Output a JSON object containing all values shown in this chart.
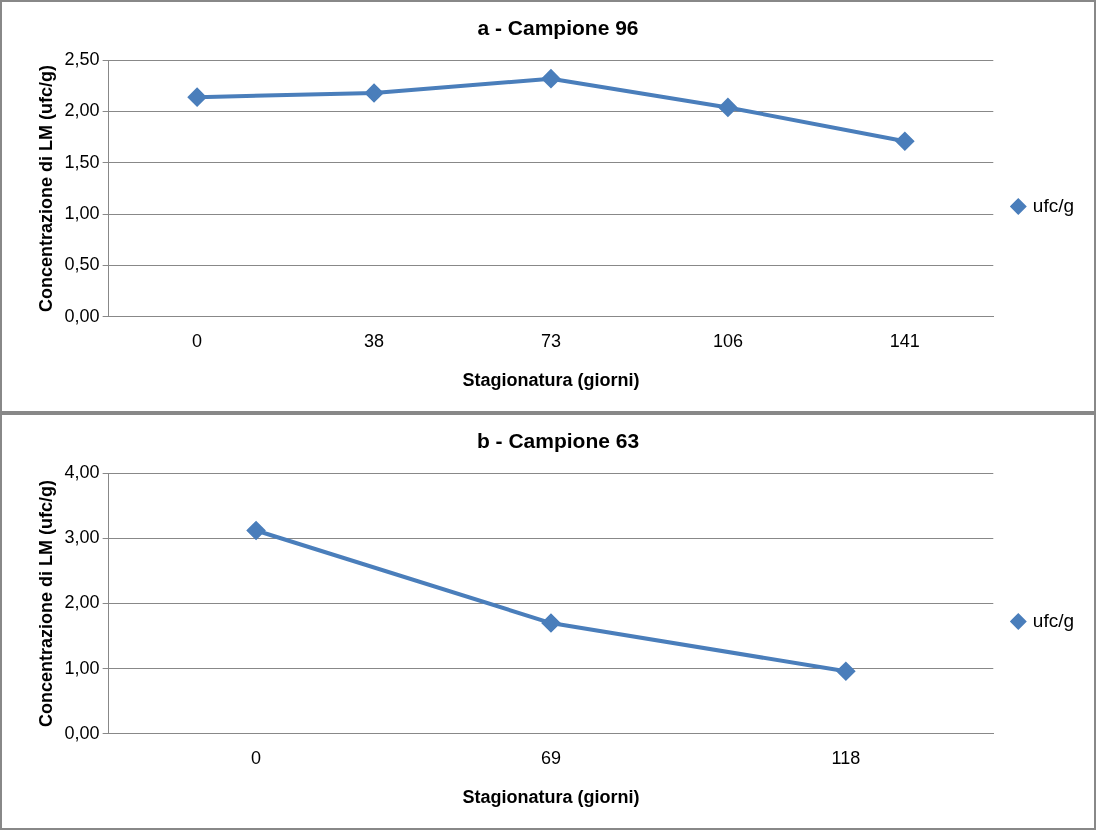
{
  "chart_data": [
    {
      "type": "line",
      "title": "a - Campione 96",
      "xlabel": "Stagionatura (giorni)",
      "ylabel": "Concentrazione di LM (ufc/g)",
      "categories": [
        "0",
        "38",
        "73",
        "106",
        "141"
      ],
      "series": [
        {
          "name": "ufc/g",
          "color": "#4a7ebb",
          "values": [
            2.14,
            2.18,
            2.32,
            2.04,
            1.71
          ]
        }
      ],
      "ylim": [
        0,
        2.5
      ],
      "yticks": [
        {
          "value": 0,
          "label": "0,00"
        },
        {
          "value": 0.5,
          "label": "0,50"
        },
        {
          "value": 1,
          "label": "1,00"
        },
        {
          "value": 1.5,
          "label": "1,50"
        },
        {
          "value": 2,
          "label": "2,00"
        },
        {
          "value": 2.5,
          "label": "2,50"
        }
      ],
      "grid": "y",
      "legend": "right",
      "marker": "diamond",
      "line_style": "solid"
    },
    {
      "type": "line",
      "title": "b - Campione 63",
      "xlabel": "Stagionatura (giorni)",
      "ylabel": "Concentrazione di LM (ufc/g)",
      "categories": [
        "0",
        "69",
        "118"
      ],
      "series": [
        {
          "name": "ufc/g",
          "color": "#4a7ebb",
          "values": [
            3.12,
            1.7,
            0.96
          ]
        }
      ],
      "ylim": [
        0,
        4
      ],
      "yticks": [
        {
          "value": 0,
          "label": "0,00"
        },
        {
          "value": 1,
          "label": "1,00"
        },
        {
          "value": 2,
          "label": "2,00"
        },
        {
          "value": 3,
          "label": "3,00"
        },
        {
          "value": 4,
          "label": "4,00"
        }
      ],
      "grid": "y",
      "legend": "right",
      "marker": "diamond",
      "line_style": "solid"
    }
  ]
}
